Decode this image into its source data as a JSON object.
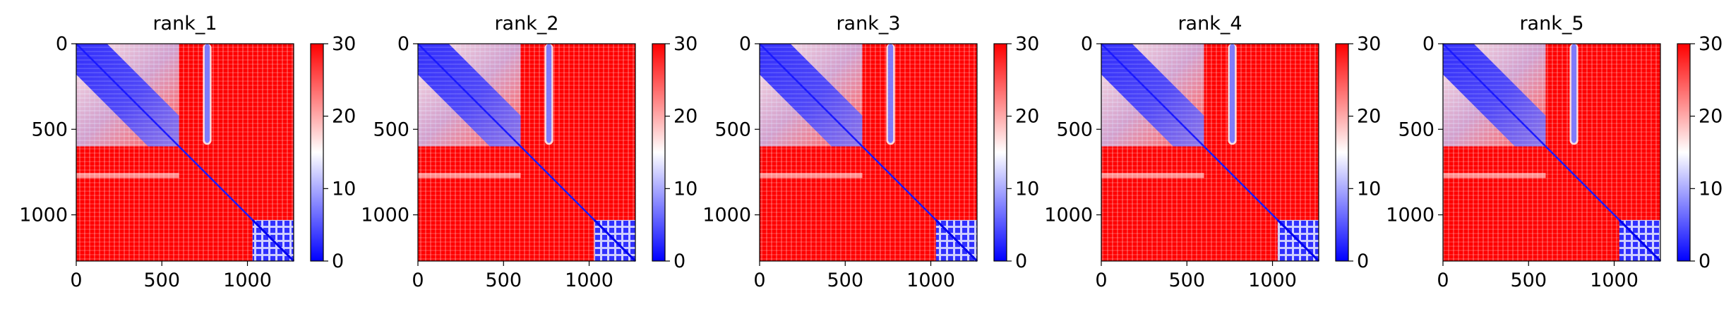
{
  "chart_data": [
    {
      "type": "heatmap",
      "title": "rank_1",
      "x_ticks": [
        0,
        500,
        1000
      ],
      "y_ticks": [
        0,
        500,
        1000
      ],
      "xlim": [
        0,
        1270
      ],
      "ylim": [
        1270,
        0
      ],
      "colorbar": {
        "min": 0,
        "max": 30,
        "ticks": [
          0,
          10,
          20,
          30
        ],
        "colormap": "bwr"
      }
    },
    {
      "type": "heatmap",
      "title": "rank_2",
      "x_ticks": [
        0,
        500,
        1000
      ],
      "y_ticks": [
        0,
        500,
        1000
      ],
      "xlim": [
        0,
        1270
      ],
      "ylim": [
        1270,
        0
      ],
      "colorbar": {
        "min": 0,
        "max": 30,
        "ticks": [
          0,
          10,
          20,
          30
        ],
        "colormap": "bwr"
      }
    },
    {
      "type": "heatmap",
      "title": "rank_3",
      "x_ticks": [
        0,
        500,
        1000
      ],
      "y_ticks": [
        0,
        500,
        1000
      ],
      "xlim": [
        0,
        1270
      ],
      "ylim": [
        1270,
        0
      ],
      "colorbar": {
        "min": 0,
        "max": 30,
        "ticks": [
          0,
          10,
          20,
          30
        ],
        "colormap": "bwr"
      }
    },
    {
      "type": "heatmap",
      "title": "rank_4",
      "x_ticks": [
        0,
        500,
        1000
      ],
      "y_ticks": [
        0,
        500,
        1000
      ],
      "xlim": [
        0,
        1270
      ],
      "ylim": [
        1270,
        0
      ],
      "colorbar": {
        "min": 0,
        "max": 30,
        "ticks": [
          0,
          10,
          20,
          30
        ],
        "colormap": "bwr"
      }
    },
    {
      "type": "heatmap",
      "title": "rank_5",
      "x_ticks": [
        0,
        500,
        1000
      ],
      "y_ticks": [
        0,
        500,
        1000
      ],
      "xlim": [
        0,
        1270
      ],
      "ylim": [
        1270,
        0
      ],
      "colorbar": {
        "min": 0,
        "max": 30,
        "ticks": [
          0,
          10,
          20,
          30
        ],
        "colormap": "bwr"
      }
    }
  ],
  "colors": {
    "low": "#0000ff",
    "mid": "#ffffff",
    "high": "#ff0000"
  }
}
